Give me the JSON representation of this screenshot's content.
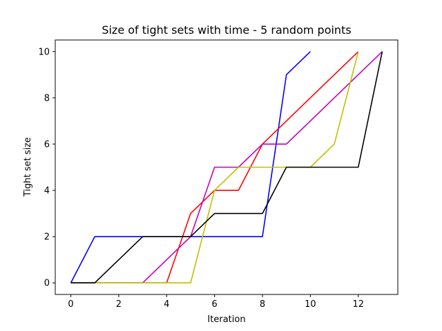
{
  "chart_data": {
    "type": "line",
    "title": "Size of tight sets with time - 5 random points",
    "xlabel": "Iteration",
    "ylabel": "Tight set size",
    "xlim": [
      -0.65,
      13.65
    ],
    "ylim": [
      -0.5,
      10.5
    ],
    "x_ticks": [
      0,
      2,
      4,
      6,
      8,
      10,
      12
    ],
    "y_ticks": [
      0,
      2,
      4,
      6,
      8,
      10
    ],
    "x_tick_labels": [
      "0",
      "2",
      "4",
      "6",
      "8",
      "10",
      "12"
    ],
    "y_tick_labels": [
      "0",
      "2",
      "4",
      "6",
      "8",
      "10"
    ],
    "grid": false,
    "legend": "none",
    "series": [
      {
        "color": "#0000ff",
        "x": [
          0,
          1,
          2,
          3,
          4,
          5,
          6,
          7,
          8,
          9,
          10
        ],
        "y": [
          0,
          2,
          2,
          2,
          2,
          2,
          2,
          2,
          2,
          9,
          10
        ]
      },
      {
        "color": "#ff0000",
        "x": [
          0,
          1,
          2,
          3,
          4,
          5,
          6,
          7,
          8,
          9,
          10,
          11,
          12
        ],
        "y": [
          0,
          0,
          0,
          0,
          0,
          3,
          4,
          4,
          6,
          7,
          8,
          9,
          10
        ]
      },
      {
        "color": "#bf00bf",
        "x": [
          0,
          1,
          2,
          3,
          4,
          5,
          6,
          7,
          8,
          9,
          10,
          11,
          12,
          13
        ],
        "y": [
          0,
          0,
          0,
          0,
          1,
          2,
          5,
          5,
          6,
          6,
          7,
          8,
          9,
          10
        ]
      },
      {
        "color": "#bfbf00",
        "x": [
          0,
          1,
          2,
          3,
          4,
          5,
          6,
          7,
          8,
          9,
          10,
          11,
          12
        ],
        "y": [
          0,
          0,
          0,
          0,
          0,
          0,
          4,
          5,
          5,
          5,
          5,
          6,
          10
        ]
      },
      {
        "color": "#000000",
        "x": [
          0,
          1,
          2,
          3,
          4,
          5,
          6,
          7,
          8,
          9,
          10,
          11,
          12,
          13
        ],
        "y": [
          0,
          0,
          1,
          2,
          2,
          2,
          3,
          3,
          3,
          5,
          5,
          5,
          5,
          10
        ]
      }
    ]
  }
}
